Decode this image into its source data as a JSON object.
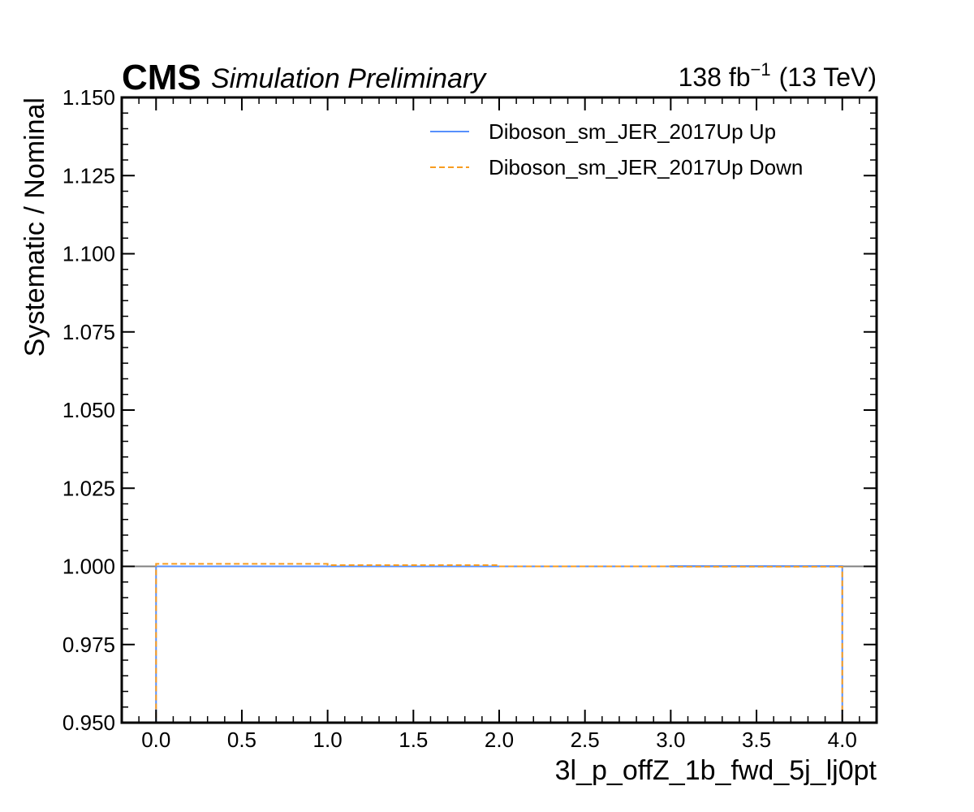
{
  "chart_data": {
    "type": "line",
    "style": "step-histogram",
    "header": {
      "experiment": "CMS",
      "status": "Simulation Preliminary",
      "lumi_value": "138 fb",
      "lumi_exp": "−1",
      "energy": "(13 TeV)"
    },
    "xlabel": "3l_p_offZ_1b_fwd_5j_lj0pt",
    "ylabel": "Systematic / Nominal",
    "xlim": [
      -0.2,
      4.2
    ],
    "ylim": [
      0.95,
      1.15
    ],
    "x_ticks": [
      "0.0",
      "0.5",
      "1.0",
      "1.5",
      "2.0",
      "2.5",
      "3.0",
      "3.5",
      "4.0"
    ],
    "y_ticks": [
      "0.950",
      "0.975",
      "1.000",
      "1.025",
      "1.050",
      "1.075",
      "1.100",
      "1.125",
      "1.150"
    ],
    "reference_line": 1.0,
    "legend_position": "top-right",
    "bin_edges": [
      0,
      1,
      2,
      3,
      4
    ],
    "series": [
      {
        "name": "Diboson_sm_JER_2017Up Up",
        "color": "#5790fc",
        "dash": "solid",
        "values": [
          1.0,
          1.0,
          1.0,
          1.0001
        ]
      },
      {
        "name": "Diboson_sm_JER_2017Up Down",
        "color": "#f89c20",
        "dash": "dashed",
        "values": [
          1.0008,
          1.0004,
          1.0,
          0.9999
        ]
      }
    ],
    "reference_color": "#808080"
  }
}
